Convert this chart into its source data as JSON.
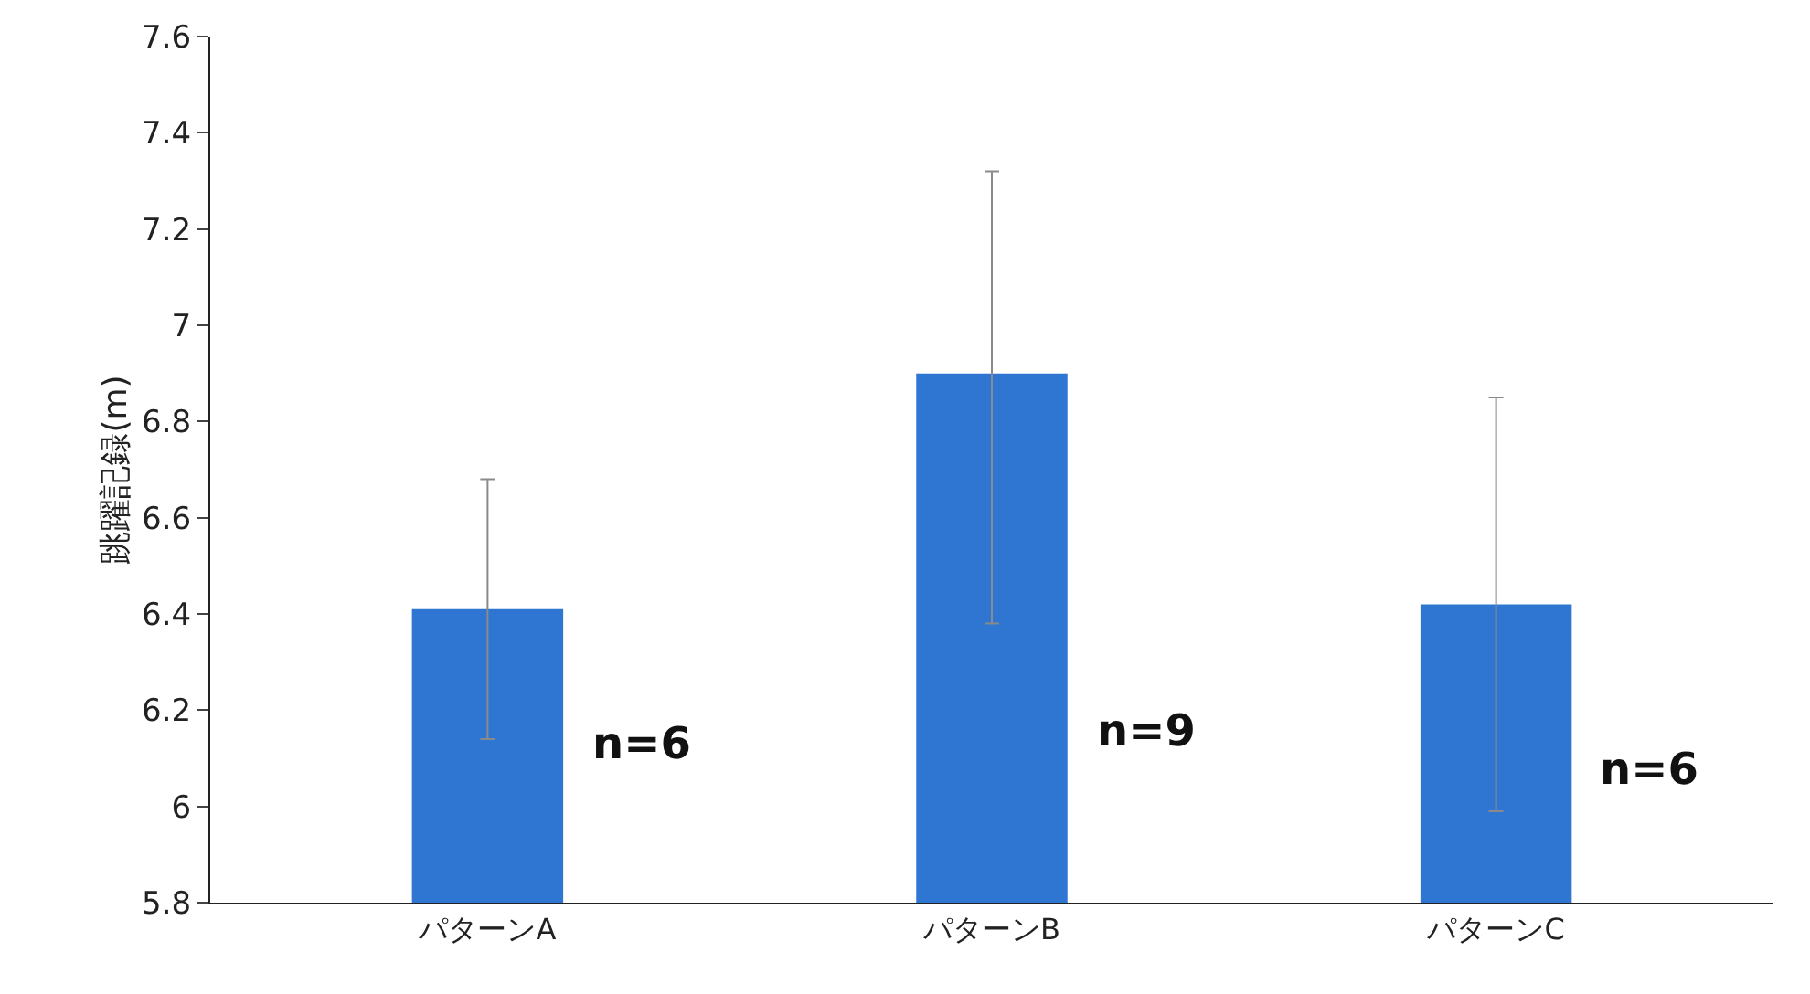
{
  "chart_data": {
    "type": "bar",
    "ylabel": "跳躍記録(m)",
    "categories": [
      "パターンA",
      "パターンB",
      "パターンC"
    ],
    "values": [
      6.41,
      6.9,
      6.42
    ],
    "errors": [
      [
        6.14,
        6.68
      ],
      [
        6.38,
        7.32
      ],
      [
        5.99,
        6.85
      ]
    ],
    "color": "#2f76d2",
    "ylim": [
      5.8,
      7.6
    ],
    "yticks": [
      5.8,
      6,
      6.2,
      6.4,
      6.6,
      6.8,
      7,
      7.2,
      7.4,
      7.6
    ],
    "annotations": [
      "n=6",
      "n=9",
      "n=6"
    ]
  }
}
